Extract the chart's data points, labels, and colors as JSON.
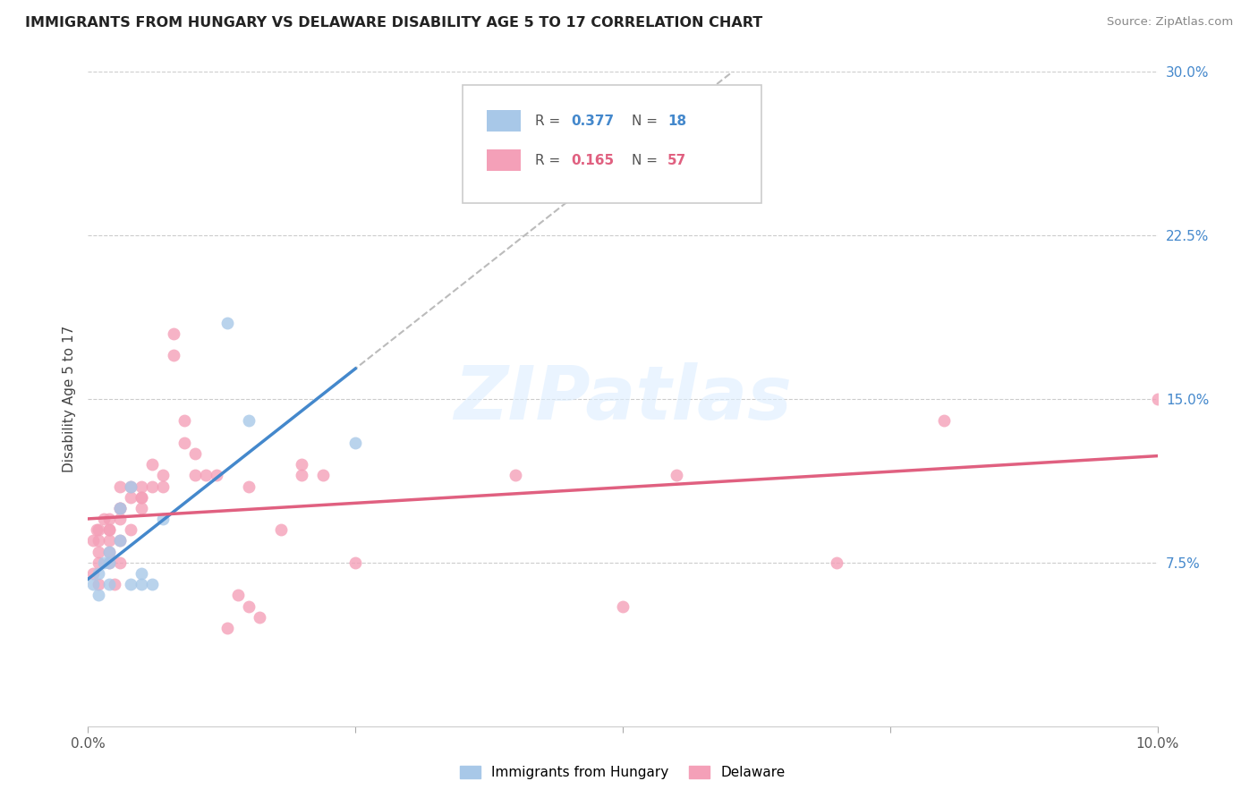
{
  "title": "IMMIGRANTS FROM HUNGARY VS DELAWARE DISABILITY AGE 5 TO 17 CORRELATION CHART",
  "source": "Source: ZipAtlas.com",
  "ylabel": "Disability Age 5 to 17",
  "xlim": [
    0.0,
    0.1
  ],
  "ylim": [
    0.0,
    0.3
  ],
  "xtick_vals": [
    0.0,
    0.025,
    0.05,
    0.075,
    0.1
  ],
  "xtick_labels": [
    "0.0%",
    "",
    "",
    "",
    "10.0%"
  ],
  "ytick_vals": [
    0.075,
    0.15,
    0.225,
    0.3
  ],
  "ytick_labels": [
    "7.5%",
    "15.0%",
    "22.5%",
    "30.0%"
  ],
  "color_blue": "#a8c8e8",
  "color_pink": "#f4a0b8",
  "color_blue_line": "#4488cc",
  "color_pink_line": "#e06080",
  "color_dashed": "#bbbbbb",
  "watermark_text": "ZIPatlas",
  "legend_label_hungary": "Immigrants from Hungary",
  "legend_label_delaware": "Delaware",
  "hungary_x": [
    0.0005,
    0.001,
    0.001,
    0.0015,
    0.002,
    0.002,
    0.002,
    0.003,
    0.003,
    0.004,
    0.004,
    0.005,
    0.005,
    0.006,
    0.007,
    0.013,
    0.015,
    0.025
  ],
  "hungary_y": [
    0.065,
    0.07,
    0.06,
    0.075,
    0.065,
    0.08,
    0.075,
    0.085,
    0.1,
    0.11,
    0.065,
    0.07,
    0.065,
    0.065,
    0.095,
    0.185,
    0.14,
    0.13
  ],
  "delaware_x": [
    0.0005,
    0.0005,
    0.0008,
    0.001,
    0.001,
    0.001,
    0.001,
    0.001,
    0.0015,
    0.002,
    0.002,
    0.002,
    0.002,
    0.002,
    0.002,
    0.0025,
    0.003,
    0.003,
    0.003,
    0.003,
    0.003,
    0.003,
    0.004,
    0.004,
    0.004,
    0.005,
    0.005,
    0.005,
    0.005,
    0.006,
    0.006,
    0.007,
    0.007,
    0.008,
    0.008,
    0.009,
    0.009,
    0.01,
    0.01,
    0.011,
    0.012,
    0.013,
    0.014,
    0.015,
    0.015,
    0.016,
    0.018,
    0.02,
    0.02,
    0.022,
    0.025,
    0.04,
    0.05,
    0.055,
    0.07,
    0.08,
    0.1
  ],
  "delaware_y": [
    0.085,
    0.07,
    0.09,
    0.09,
    0.08,
    0.075,
    0.085,
    0.065,
    0.095,
    0.09,
    0.095,
    0.08,
    0.075,
    0.085,
    0.09,
    0.065,
    0.095,
    0.1,
    0.085,
    0.1,
    0.075,
    0.11,
    0.09,
    0.105,
    0.11,
    0.11,
    0.105,
    0.105,
    0.1,
    0.12,
    0.11,
    0.115,
    0.11,
    0.17,
    0.18,
    0.13,
    0.14,
    0.125,
    0.115,
    0.115,
    0.115,
    0.045,
    0.06,
    0.11,
    0.055,
    0.05,
    0.09,
    0.115,
    0.12,
    0.115,
    0.075,
    0.115,
    0.055,
    0.115,
    0.075,
    0.14,
    0.15
  ]
}
